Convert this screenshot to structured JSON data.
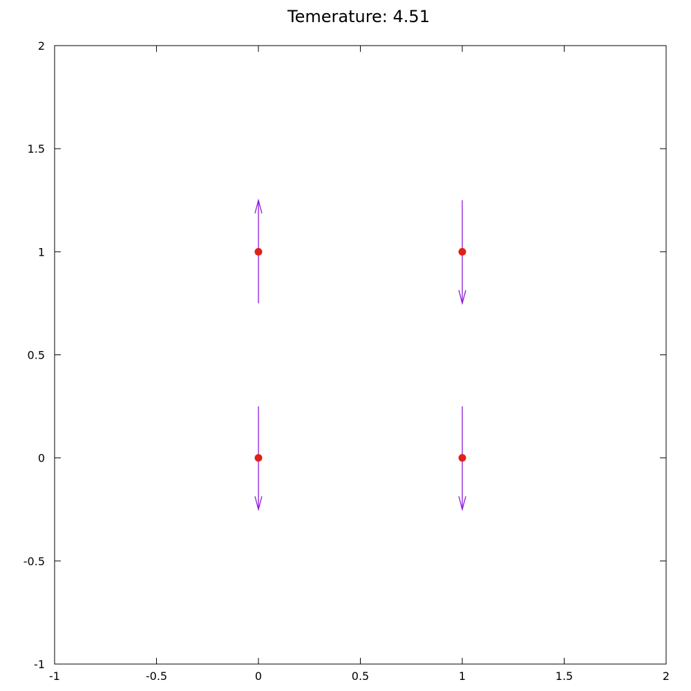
{
  "chart_data": {
    "type": "vector-field",
    "title": "Temerature: 4.51",
    "xlabel": "",
    "ylabel": "",
    "xlim": [
      -1,
      2
    ],
    "ylim": [
      -1,
      2
    ],
    "xticks": [
      "-1",
      "-0.5",
      "0",
      "0.5",
      "1",
      "1.5",
      "2"
    ],
    "yticks": [
      "-1",
      "-0.5",
      "0",
      "0.5",
      "1",
      "1.5",
      "2"
    ],
    "grid": false,
    "legend": "none",
    "points": [
      {
        "x": 0,
        "y": 1,
        "spin": 1
      },
      {
        "x": 1,
        "y": 1,
        "spin": -1
      },
      {
        "x": 0,
        "y": 0,
        "spin": -1
      },
      {
        "x": 1,
        "y": 0,
        "spin": -1
      }
    ],
    "arrow_length": 0.5,
    "colors": {
      "point": "#e0201a",
      "arrow": "#8b1ad6",
      "axis": "#000000"
    }
  }
}
